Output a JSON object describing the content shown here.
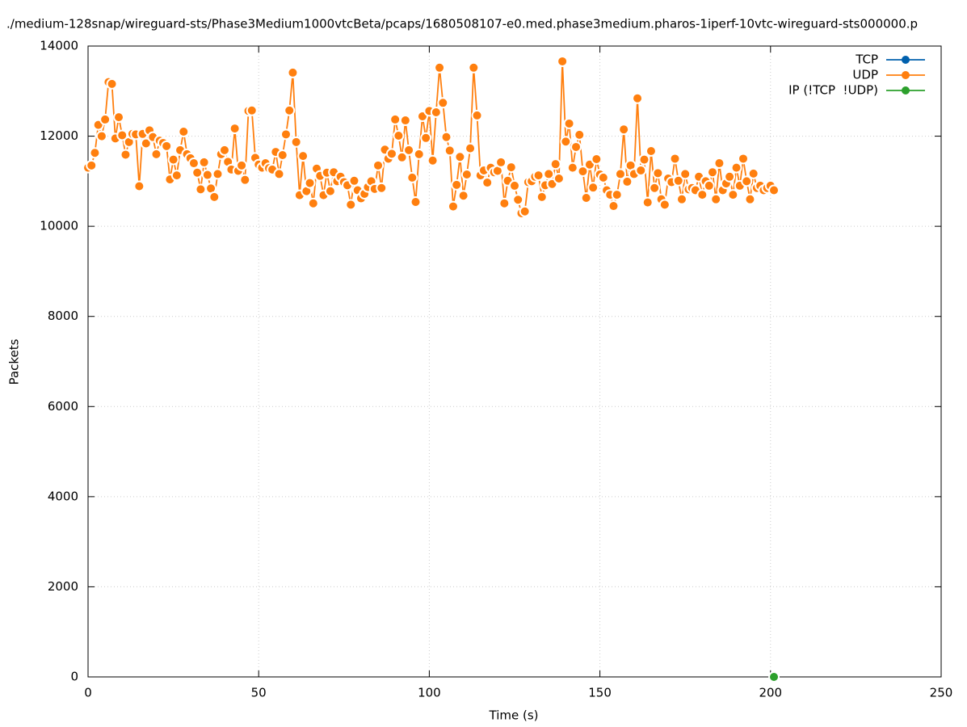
{
  "chart_data": {
    "type": "line",
    "title": "./medium-128snap/wireguard-sts/Phase3Medium1000vtcBeta/pcaps/1680508107-e0.med.phase3medium.pharos-1iperf-10vtc-wireguard-sts000000.p",
    "xlabel": "Time (s)",
    "ylabel": "Packets",
    "xlim": [
      0,
      250
    ],
    "xticks": [
      0,
      50,
      100,
      150,
      200,
      250
    ],
    "ylim": [
      0,
      14000
    ],
    "yticks": [
      0,
      2000,
      4000,
      6000,
      8000,
      10000,
      12000,
      14000
    ],
    "grid": true,
    "legend": "top-right",
    "series": [
      {
        "name": "TCP",
        "color": "#0060ad",
        "x": [],
        "values": []
      },
      {
        "name": "UDP",
        "color": "#ff7f0e",
        "x": [
          0,
          1,
          2,
          3,
          4,
          5,
          6,
          7,
          8,
          9,
          10,
          11,
          12,
          13,
          14,
          15,
          16,
          17,
          18,
          19,
          20,
          21,
          22,
          23,
          24,
          25,
          26,
          27,
          28,
          29,
          30,
          31,
          32,
          33,
          34,
          35,
          36,
          37,
          38,
          39,
          40,
          41,
          42,
          43,
          44,
          45,
          46,
          47,
          48,
          49,
          50,
          51,
          52,
          53,
          54,
          55,
          56,
          57,
          58,
          59,
          60,
          61,
          62,
          63,
          64,
          65,
          66,
          67,
          68,
          69,
          70,
          71,
          72,
          73,
          74,
          75,
          76,
          77,
          78,
          79,
          80,
          81,
          82,
          83,
          84,
          85,
          86,
          87,
          88,
          89,
          90,
          91,
          92,
          93,
          94,
          95,
          96,
          97,
          98,
          99,
          100,
          101,
          102,
          103,
          104,
          105,
          106,
          107,
          108,
          109,
          110,
          111,
          112,
          113,
          114,
          115,
          116,
          117,
          118,
          119,
          120,
          121,
          122,
          123,
          124,
          125,
          126,
          127,
          128,
          129,
          130,
          131,
          132,
          133,
          134,
          135,
          136,
          137,
          138,
          139,
          140,
          141,
          142,
          143,
          144,
          145,
          146,
          147,
          148,
          149,
          150,
          151,
          152,
          153,
          154,
          155,
          156,
          157,
          158,
          159,
          160,
          161,
          162,
          163,
          164,
          165,
          166,
          167,
          168,
          169,
          170,
          171,
          172,
          173,
          174,
          175,
          176,
          177,
          178,
          179,
          180,
          181,
          182,
          183,
          184,
          185,
          186,
          187,
          188,
          189,
          190,
          191,
          192,
          193,
          194,
          195,
          196,
          197,
          198,
          199,
          200,
          201
        ],
        "values": [
          11300,
          11350,
          11630,
          12250,
          12000,
          12370,
          13200,
          13160,
          11950,
          12420,
          12020,
          11590,
          11870,
          12050,
          12040,
          10890,
          12050,
          11840,
          12130,
          11980,
          11600,
          11900,
          11850,
          11780,
          11040,
          11480,
          11130,
          11690,
          12100,
          11600,
          11510,
          11400,
          11190,
          10820,
          11420,
          11140,
          10840,
          10650,
          11160,
          11600,
          11690,
          11430,
          11260,
          12170,
          11230,
          11350,
          11030,
          12560,
          12570,
          11520,
          11370,
          11300,
          11400,
          11290,
          11260,
          11650,
          11160,
          11580,
          12040,
          12570,
          13410,
          11870,
          10690,
          11560,
          10780,
          10960,
          10510,
          11280,
          11120,
          10690,
          11190,
          10780,
          11200,
          11000,
          11100,
          10980,
          10910,
          10480,
          11010,
          10800,
          10620,
          10720,
          10870,
          11000,
          10830,
          11350,
          10850,
          11700,
          11500,
          11610,
          12370,
          12010,
          11530,
          12350,
          11690,
          11080,
          10540,
          11600,
          12440,
          11960,
          12560,
          11460,
          12530,
          13520,
          12740,
          11980,
          11680,
          10440,
          10920,
          11540,
          10680,
          11150,
          11730,
          13520,
          12460,
          11130,
          11240,
          10970,
          11300,
          11200,
          11230,
          11420,
          10510,
          11010,
          11310,
          10900,
          10590,
          10290,
          10330,
          10980,
          11000,
          11100,
          11130,
          10650,
          10910,
          11160,
          10940,
          11380,
          11060,
          13660,
          11880,
          12280,
          11300,
          11760,
          12030,
          11220,
          10630,
          11370,
          10860,
          11490,
          11150,
          11080,
          10800,
          10700,
          10450,
          10700,
          11160,
          12150,
          10990,
          11350,
          11160,
          12840,
          11240,
          11480,
          10530,
          11670,
          10850,
          11180,
          10600,
          10480,
          11060,
          10980,
          11500,
          11010,
          10600,
          11160,
          10820,
          10850,
          10800,
          11100,
          10700,
          11000,
          10900,
          11200,
          10600,
          11400,
          10800,
          10950,
          11100,
          10700,
          11300,
          10900,
          11500,
          11000,
          10600,
          11170,
          10850,
          10900,
          10800,
          10850,
          10900,
          10800
        ]
      },
      {
        "name": "IP (!TCP  !UDP)",
        "color": "#2ca02c",
        "x": [
          201
        ],
        "values": [
          0
        ]
      }
    ]
  }
}
